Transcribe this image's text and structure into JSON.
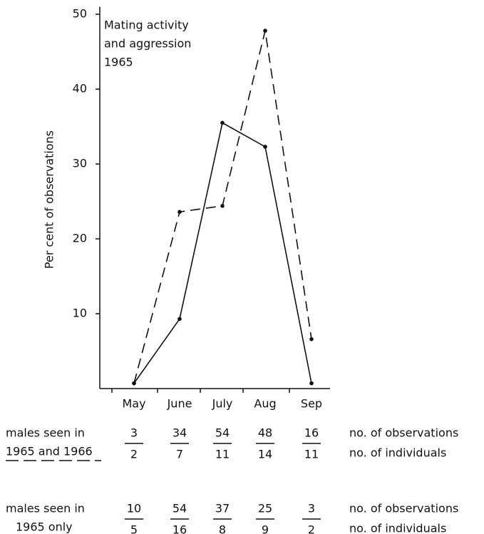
{
  "chart_data": {
    "type": "line",
    "title_lines": [
      "Mating activity",
      "and aggression",
      "1965"
    ],
    "y_label": "Per cent of observations",
    "categories": [
      "May",
      "June",
      "July",
      "Aug",
      "Sep"
    ],
    "ylim": [
      0,
      51
    ],
    "yticks": [
      10,
      20,
      30,
      40,
      50
    ],
    "row_captions": [
      "no. of observations",
      "no. of individuals"
    ],
    "series": [
      {
        "label_lines": [
          "males seen in",
          "1965 and 1966"
        ],
        "dashed": true,
        "color": "#111111",
        "values": [
          0.7,
          23.6,
          24.4,
          47.8,
          6.6
        ],
        "observations": [
          3,
          34,
          54,
          48,
          16
        ],
        "individuals": [
          2,
          7,
          11,
          14,
          11
        ]
      },
      {
        "label_lines": [
          "males seen in",
          "1965 only"
        ],
        "dashed": false,
        "color": "#111111",
        "values": [
          0.7,
          9.3,
          35.5,
          32.3,
          0.7
        ],
        "observations": [
          10,
          54,
          37,
          25,
          3
        ],
        "individuals": [
          5,
          16,
          8,
          9,
          2
        ]
      }
    ]
  }
}
